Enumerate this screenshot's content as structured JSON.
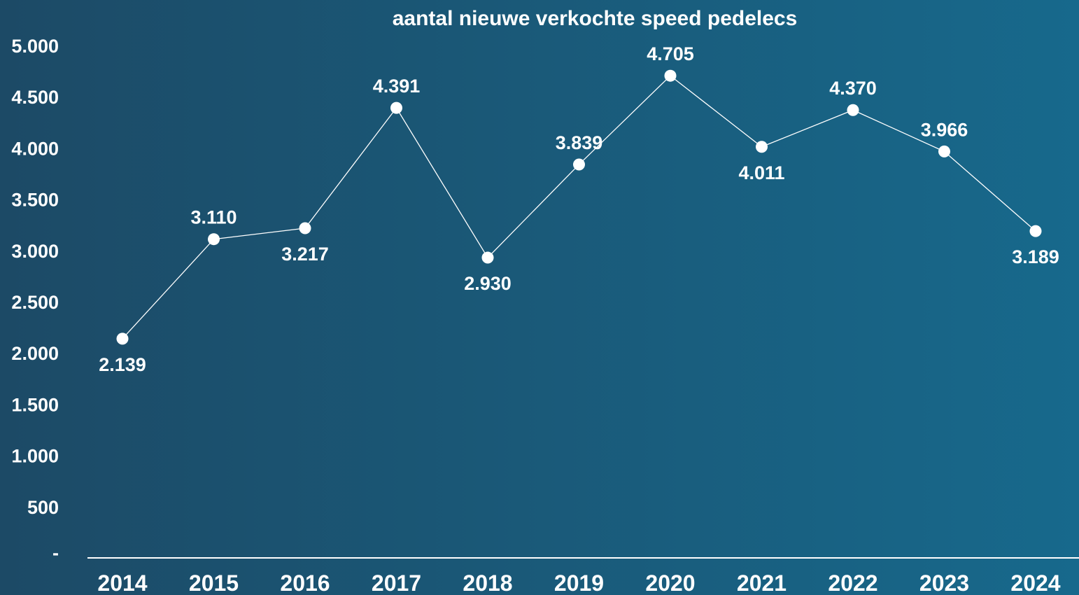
{
  "chart_data": {
    "type": "line",
    "title": "aantal nieuwe verkochte speed pedelecs",
    "xlabel": "",
    "ylabel": "",
    "categories": [
      "2014",
      "2015",
      "2016",
      "2017",
      "2018",
      "2019",
      "2020",
      "2021",
      "2022",
      "2023",
      "2024"
    ],
    "series": [
      {
        "values": [
          2139,
          3110,
          3217,
          4391,
          2930,
          3839,
          4705,
          4011,
          4370,
          3966,
          3189
        ],
        "labels": [
          "2.139",
          "3.110",
          "3.217",
          "4.391",
          "2.930",
          "3.839",
          "4.705",
          "4.011",
          "4.370",
          "3.966",
          "3.189"
        ],
        "label_position": [
          "below",
          "above",
          "below",
          "above",
          "below",
          "above",
          "above",
          "below",
          "above",
          "above",
          "below"
        ]
      }
    ],
    "ylim": [
      0,
      5000
    ],
    "y_ticks": [
      0,
      500,
      1000,
      1500,
      2000,
      2500,
      3000,
      3500,
      4000,
      4500,
      5000
    ],
    "y_tick_labels": [
      "-",
      "500",
      "1.000",
      "1.500",
      "2.000",
      "2.500",
      "3.000",
      "3.500",
      "4.000",
      "4.500",
      "5.000"
    ],
    "grid": false,
    "legend": "none",
    "colors": {
      "background_start": "#1c4a66",
      "background_end": "#17698c",
      "line": "#ffffff",
      "marker": "#ffffff",
      "text": "#ffffff"
    }
  }
}
